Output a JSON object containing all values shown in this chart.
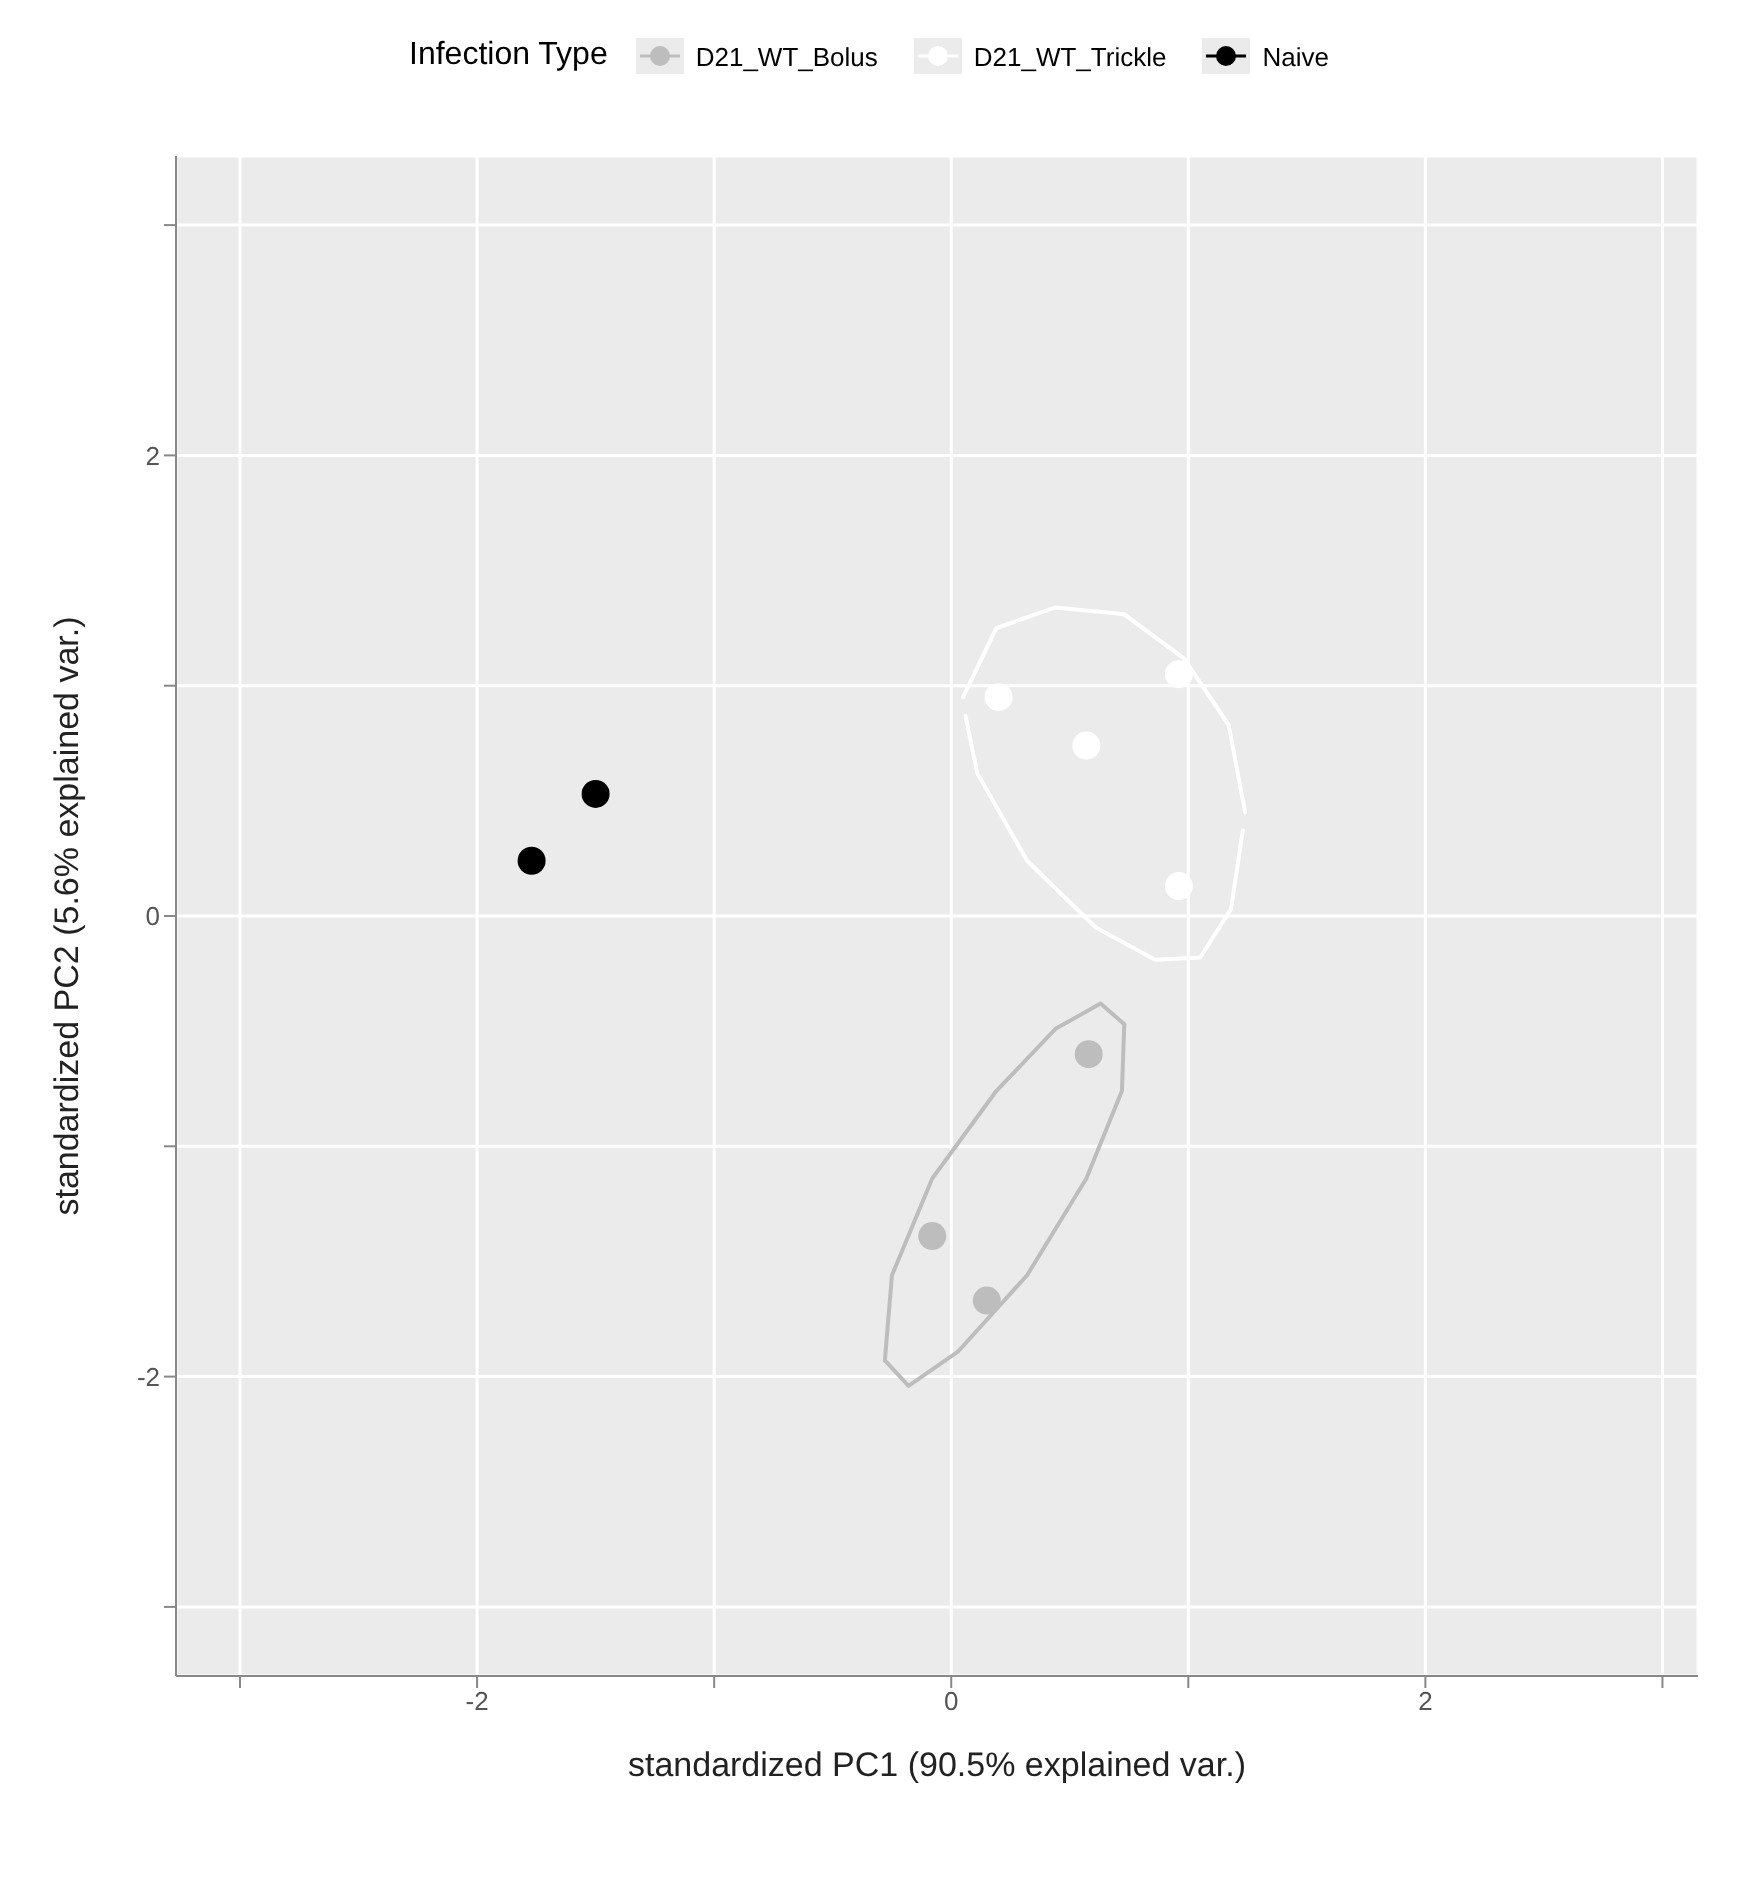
{
  "chart_data": {
    "type": "scatter",
    "xlabel": "standardized PC1 (90.5% explained var.)",
    "ylabel": "standardized PC2 (5.6% explained var.)",
    "legend_title": "Infection Type",
    "legend": "top",
    "grid": true,
    "marker": "circle",
    "xlim": [
      -3.27,
      3.15
    ],
    "ylim": [
      -3.3,
      3.3
    ],
    "xticks": [
      {
        "value": -3,
        "label": null
      },
      -2,
      {
        "value": -1,
        "label": null
      },
      0,
      {
        "value": 1,
        "label": null
      },
      2,
      {
        "value": 3,
        "label": null
      }
    ],
    "yticks": [
      {
        "value": -3,
        "label": null
      },
      -2,
      {
        "value": -1,
        "label": null
      },
      0,
      {
        "value": 1,
        "label": null
      },
      2,
      {
        "value": 3,
        "label": null
      }
    ],
    "series": [
      {
        "type": "line",
        "marker": "none",
        "color": "#bdbdbd",
        "x": [
          -0.28,
          -0.25,
          -0.08,
          0.19,
          0.44,
          0.63,
          0.73
        ],
        "values": [
          -1.93,
          -1.56,
          -1.14,
          -0.76,
          -0.49,
          -0.38,
          -0.47
        ]
      },
      {
        "type": "line",
        "marker": "none",
        "color": "#bdbdbd",
        "x": [
          -0.28,
          -0.18,
          0.03,
          0.32,
          0.57,
          0.72,
          0.73
        ],
        "values": [
          -1.93,
          -2.04,
          -1.89,
          -1.56,
          -1.14,
          -0.76,
          -0.47
        ]
      },
      {
        "type": "line",
        "marker": "none",
        "color": "#ffffff",
        "x": [
          0.05,
          0.19,
          0.44,
          0.73,
          0.98,
          1.17,
          1.24
        ],
        "values": [
          0.95,
          1.25,
          1.34,
          1.31,
          1.12,
          0.83,
          0.45
        ]
      },
      {
        "type": "line",
        "marker": "none",
        "color": "#ffffff",
        "x": [
          0.06,
          0.11,
          0.32,
          0.61,
          0.86,
          1.05,
          1.18,
          1.23
        ],
        "values": [
          0.87,
          0.62,
          0.24,
          -0.05,
          -0.19,
          -0.18,
          0.03,
          0.37
        ]
      },
      {
        "name": "D21_WT_Bolus",
        "color": "#bdbdbd",
        "x": [
          0.58,
          -0.08,
          0.15
        ],
        "values": [
          -0.6,
          -1.39,
          -1.67
        ]
      },
      {
        "name": "D21_WT_Trickle",
        "color": "#ffffff",
        "x": [
          0.2,
          0.57,
          0.96,
          0.96
        ],
        "values": [
          0.95,
          0.74,
          1.05,
          0.13
        ]
      },
      {
        "name": "Naive",
        "color": "#000000",
        "x": [
          -1.77,
          -1.5
        ],
        "values": [
          0.24,
          0.53
        ]
      }
    ]
  }
}
